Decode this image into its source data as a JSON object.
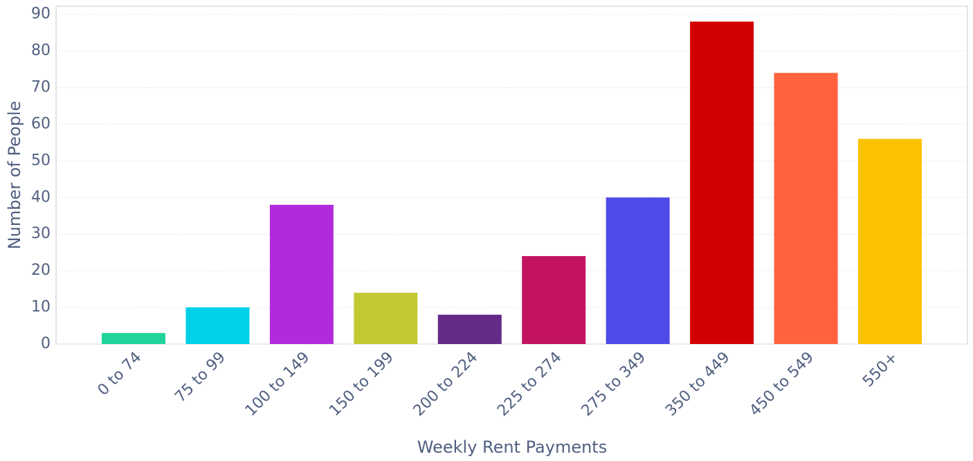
{
  "chart_data": {
    "type": "bar",
    "x_label": "Weekly Rent Payments",
    "y_label": "Number of People",
    "categories": [
      "0 to 74",
      "75 to 99",
      "100 to 149",
      "150 to 199",
      "200 to 224",
      "225 to 274",
      "275 to 349",
      "350 to 449",
      "450 to 549",
      "550+"
    ],
    "values": [
      3,
      10,
      38,
      14,
      8,
      24,
      40,
      88,
      74,
      56
    ],
    "colors": [
      "#1fd49b",
      "#00d1e6",
      "#b12bdc",
      "#c2ca33",
      "#632a88",
      "#c3135e",
      "#4f4ae8",
      "#d20000",
      "#ff623d",
      "#fbc201"
    ],
    "ylim": [
      0,
      92.2
    ],
    "yticks": [
      0,
      10,
      20,
      30,
      40,
      50,
      60,
      70,
      80,
      90
    ],
    "grid": true
  }
}
